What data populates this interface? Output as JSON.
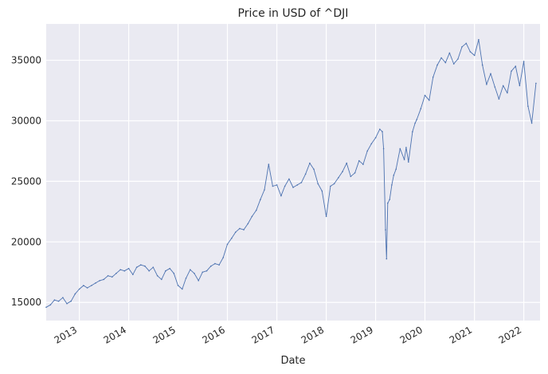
{
  "chart_data": {
    "type": "line",
    "title": "Price in USD of ^DJI",
    "xlabel": "Date",
    "ylabel": "",
    "grid": true,
    "legend": "none",
    "colors": {
      "background": "#eaeaf2",
      "grid": "#ffffff",
      "line": "#4c72b0",
      "text": "#262626"
    },
    "xlim": [
      "2012-05-01",
      "2022-05-01"
    ],
    "ylim": [
      13500,
      38000
    ],
    "x_ticks": [
      {
        "label": "2013",
        "value": "2013-01-01"
      },
      {
        "label": "2014",
        "value": "2014-01-01"
      },
      {
        "label": "2015",
        "value": "2015-01-01"
      },
      {
        "label": "2016",
        "value": "2016-01-01"
      },
      {
        "label": "2017",
        "value": "2017-01-01"
      },
      {
        "label": "2018",
        "value": "2018-01-01"
      },
      {
        "label": "2019",
        "value": "2019-01-01"
      },
      {
        "label": "2020",
        "value": "2020-01-01"
      },
      {
        "label": "2021",
        "value": "2021-01-01"
      },
      {
        "label": "2022",
        "value": "2022-01-01"
      }
    ],
    "y_ticks": [
      {
        "label": "15000",
        "value": 15000
      },
      {
        "label": "20000",
        "value": 20000
      },
      {
        "label": "25000",
        "value": 25000
      },
      {
        "label": "30000",
        "value": 30000
      },
      {
        "label": "35000",
        "value": 35000
      }
    ],
    "series": [
      {
        "x": [
          "2012-05-01",
          "2012-06-01",
          "2012-07-01",
          "2012-08-01",
          "2012-09-01",
          "2012-10-01",
          "2012-11-01",
          "2012-12-01",
          "2013-01-01",
          "2013-02-01",
          "2013-03-01",
          "2013-04-01",
          "2013-05-01",
          "2013-06-01",
          "2013-07-01",
          "2013-08-01",
          "2013-09-01",
          "2013-10-01",
          "2013-11-01",
          "2013-12-01",
          "2014-01-01",
          "2014-02-01",
          "2014-03-01",
          "2014-04-01",
          "2014-05-01",
          "2014-06-01",
          "2014-07-01",
          "2014-08-01",
          "2014-09-01",
          "2014-10-01",
          "2014-11-01",
          "2014-12-01",
          "2015-01-01",
          "2015-02-01",
          "2015-03-01",
          "2015-04-01",
          "2015-05-01",
          "2015-06-01",
          "2015-07-01",
          "2015-08-01",
          "2015-09-01",
          "2015-10-01",
          "2015-11-01",
          "2015-12-01",
          "2016-01-01",
          "2016-02-01",
          "2016-03-01",
          "2016-04-01",
          "2016-05-01",
          "2016-06-01",
          "2016-07-01",
          "2016-08-01",
          "2016-09-01",
          "2016-10-01",
          "2016-11-01",
          "2016-12-01",
          "2017-01-01",
          "2017-02-01",
          "2017-03-01",
          "2017-04-01",
          "2017-05-01",
          "2017-06-01",
          "2017-07-01",
          "2017-08-01",
          "2017-09-01",
          "2017-10-01",
          "2017-11-01",
          "2017-12-01",
          "2018-01-01",
          "2018-02-01",
          "2018-03-01",
          "2018-04-01",
          "2018-05-01",
          "2018-06-01",
          "2018-07-01",
          "2018-08-01",
          "2018-09-01",
          "2018-10-01",
          "2018-11-01",
          "2018-12-01",
          "2019-01-01",
          "2019-02-01",
          "2019-02-20",
          "2019-03-01",
          "2019-03-15",
          "2019-03-23",
          "2019-04-01",
          "2019-04-15",
          "2019-05-01",
          "2019-05-15",
          "2019-06-01",
          "2019-07-01",
          "2019-08-01",
          "2019-08-15",
          "2019-09-01",
          "2019-10-01",
          "2019-10-20",
          "2019-11-01",
          "2019-12-01",
          "2020-01-01",
          "2020-02-01",
          "2020-03-01",
          "2020-04-01",
          "2020-05-01",
          "2020-06-01",
          "2020-07-01",
          "2020-08-01",
          "2020-09-01",
          "2020-10-01",
          "2020-11-01",
          "2020-12-01",
          "2021-01-01",
          "2021-02-01",
          "2021-03-01",
          "2021-04-01",
          "2021-05-01",
          "2021-06-01",
          "2021-07-01",
          "2021-08-01",
          "2021-09-01",
          "2021-10-01",
          "2021-11-01",
          "2021-12-01",
          "2022-01-01",
          "2022-02-01",
          "2022-03-01",
          "2022-04-01"
        ],
        "values": [
          14600,
          14800,
          15200,
          15100,
          15400,
          14900,
          15100,
          15700,
          16100,
          16400,
          16200,
          16400,
          16600,
          16800,
          16900,
          17200,
          17100,
          17400,
          17700,
          17600,
          17800,
          17300,
          17900,
          18100,
          18000,
          17600,
          17900,
          17200,
          16900,
          17600,
          17800,
          17400,
          16400,
          16100,
          17000,
          17700,
          17400,
          16800,
          17500,
          17600,
          18000,
          18200,
          18100,
          18700,
          19800,
          20300,
          20800,
          21100,
          21000,
          21500,
          22100,
          22600,
          23500,
          24300,
          26400,
          24600,
          24700,
          23800,
          24600,
          25200,
          24500,
          24700,
          24900,
          25600,
          26500,
          26000,
          24800,
          24200,
          22100,
          24600,
          24800,
          25300,
          25800,
          26500,
          25400,
          25700,
          26700,
          26400,
          27500,
          28100,
          28600,
          29300,
          29100,
          27700,
          21000,
          18600,
          23200,
          23500,
          24700,
          25500,
          26000,
          27700,
          26800,
          27800,
          26600,
          29100,
          29800,
          30100,
          31000,
          32100,
          31700,
          33600,
          34600,
          35200,
          34800,
          35600,
          34700,
          35100,
          36100,
          36400,
          35700,
          35400,
          36700,
          34600,
          33000,
          33900,
          32800,
          31800,
          32900,
          32300,
          34100,
          34500,
          32900,
          34900,
          31200,
          29800,
          33100
        ],
        "color": "#4c72b0"
      }
    ]
  }
}
